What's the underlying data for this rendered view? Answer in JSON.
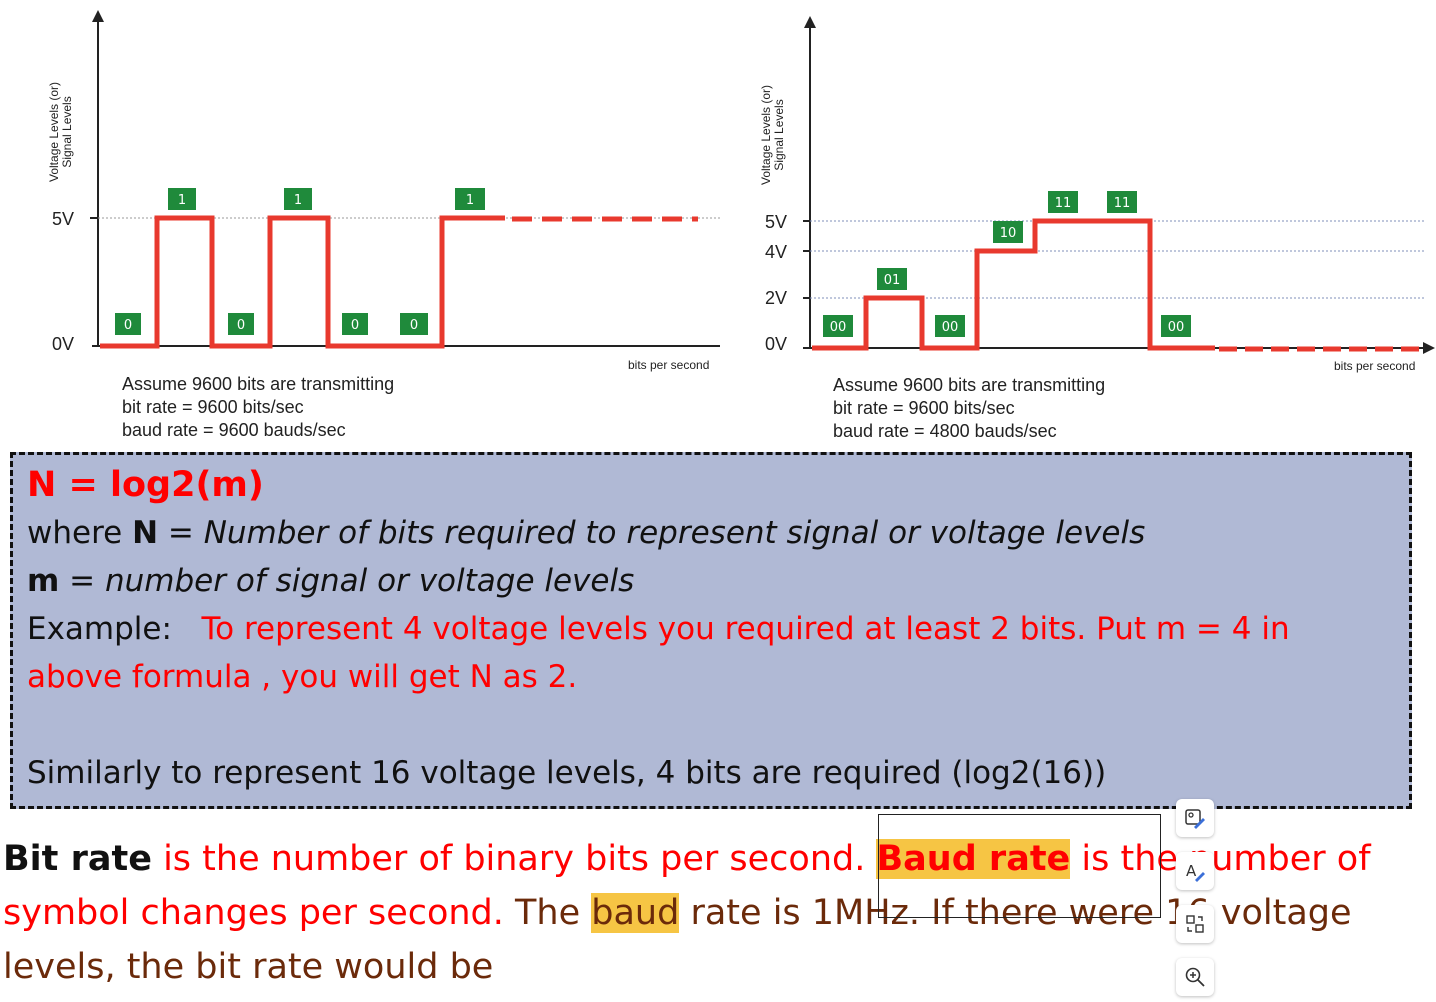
{
  "left_chart": {
    "ylabel_line1": "Voltage Levels (or)",
    "ylabel_line2": "Signal Levels",
    "level_5v": "5V",
    "level_0v": "0V",
    "xlabel": "bits per second",
    "caption": [
      "Assume 9600 bits are transmitting",
      "bit rate = 9600 bits/sec",
      "baud rate = 9600 bauds/sec"
    ]
  },
  "right_chart": {
    "ylabel_line1": "Voltage Levels (or)",
    "ylabel_line2": "Signal Levels",
    "level_5v": "5V",
    "level_4v": "4V",
    "level_2v": "2V",
    "level_0v": "0V",
    "xlabel": "bits per second",
    "caption": [
      "Assume 9600 bits are transmitting",
      "bit rate = 9600 bits/sec",
      "baud rate = 4800 bauds/sec"
    ]
  },
  "chart_data": [
    {
      "type": "line",
      "levels_v": [
        0,
        5
      ],
      "bits": [
        "0",
        "1",
        "0",
        "1",
        "0",
        "0",
        "1"
      ],
      "signal_v": [
        0,
        5,
        0,
        5,
        0,
        0,
        5
      ],
      "continuation": "dashed at 5V",
      "xlabel": "bits per second",
      "ylabel": "Voltage Levels (or) Signal Levels"
    },
    {
      "type": "line",
      "levels_v": [
        0,
        2,
        4,
        5
      ],
      "symbols": [
        "00",
        "01",
        "00",
        "10",
        "11",
        "11",
        "00"
      ],
      "signal_v": [
        0,
        2,
        0,
        4,
        5,
        5,
        0
      ],
      "continuation": "dashed at 0V",
      "xlabel": "bits per second",
      "ylabel": "Voltage Levels (or) Signal Levels"
    }
  ],
  "formula": {
    "title": "N = log2(m)",
    "where_prefix": "where ",
    "N": "N",
    "N_def": " = ",
    "N_def_italic": "Number of bits required to represent signal or voltage levels",
    "m": "m",
    "m_eq": " = ",
    "m_def_italic": "number of signal or voltage levels",
    "example_label": "Example:   ",
    "example_text_1": "To represent 4 voltage levels you required at least 2 bits. Put m = 4 in",
    "example_text_2": "above formula , you will get N as 2.",
    "similarly": "Similarly to represent 16 voltage levels, 4 bits are required (log2(16))"
  },
  "bottom": {
    "bit_rate": "Bit rate",
    "part1": " is the number of binary bits per second. ",
    "baud_rate": "Baud rate",
    "part2": " is the number of",
    "part3": "symbol changes per second.",
    "part4": " The ",
    "baud": "baud",
    "part5": " rate is 1MHz. If there were 16 voltage",
    "part6": "levels, the bit rate would be"
  },
  "toolbar": {
    "icons": [
      "image-edit-icon",
      "text-edit-icon",
      "swap-icon",
      "zoom-in-icon"
    ]
  },
  "colors": {
    "signal": "#e8392e",
    "bitbox": "#1f8a3b",
    "formula_bg": "#b0b9d5",
    "highlight": "#f6c544",
    "accent_red": "#ff0000"
  }
}
